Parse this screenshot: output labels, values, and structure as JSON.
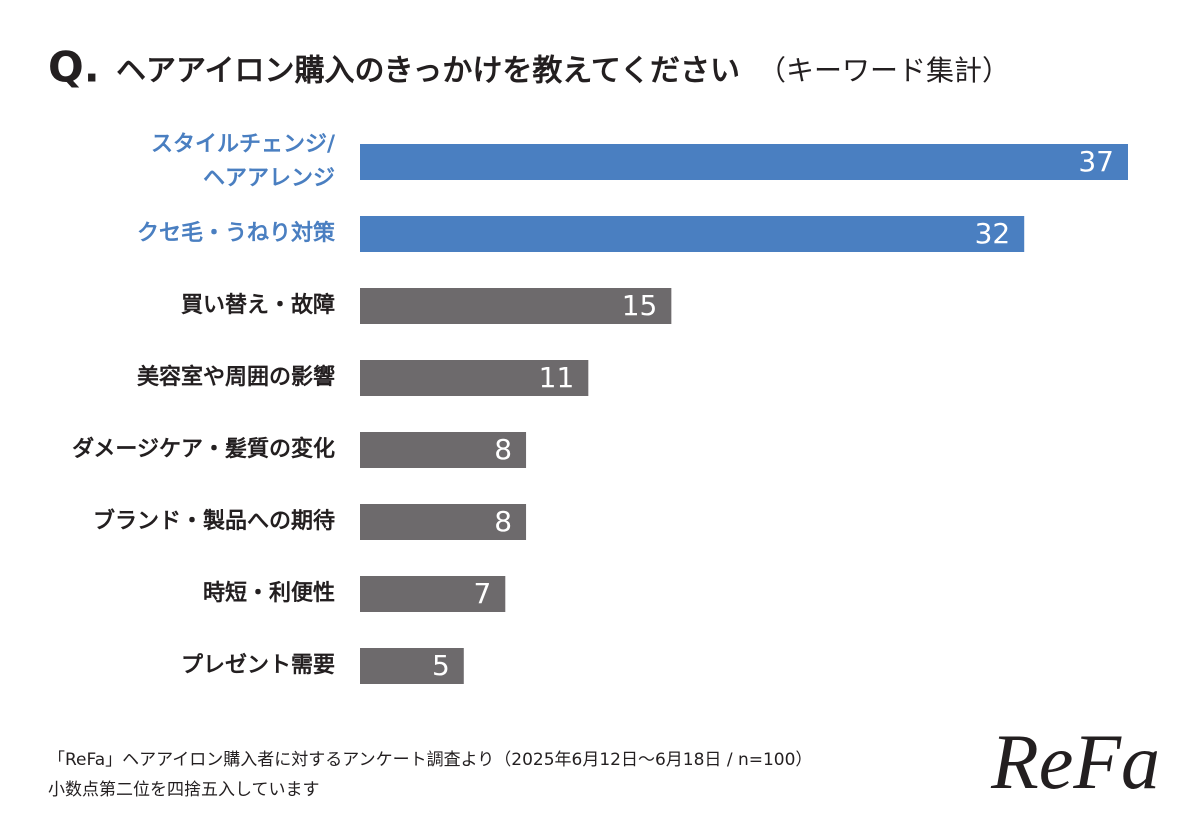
{
  "chart_data": {
    "type": "hbar",
    "title_prefix": "Q.",
    "title": "ヘアアイロン購入のきっかけを教えてください",
    "subtitle": "（キーワード集計）",
    "categories": [
      "スタイルチェンジ/\nヘアアレンジ",
      "クセ毛・うねり対策",
      "買い替え・故障",
      "美容室や周囲の影響",
      "ダメージケア・髪質の変化",
      "ブランド・製品への期待",
      "時短・利便性",
      "プレゼント需要"
    ],
    "values": [
      37,
      32,
      15,
      11,
      8,
      8,
      7,
      5
    ],
    "colors": [
      "#4a7fc1",
      "#4a7fc1",
      "#6d6a6c",
      "#6d6a6c",
      "#6d6a6c",
      "#6d6a6c",
      "#6d6a6c",
      "#6d6a6c"
    ],
    "label_colors": [
      "#4a7fc1",
      "#4a7fc1",
      "#231f20",
      "#231f20",
      "#231f20",
      "#231f20",
      "#231f20",
      "#231f20"
    ],
    "footnotes": [
      "「ReFa」ヘアアイロン購入者に対するアンケート調査より（2025年6月12日～6月18日 / n=100）",
      "小数点第二位を四捨五入しています"
    ],
    "logo": "ReFa"
  }
}
